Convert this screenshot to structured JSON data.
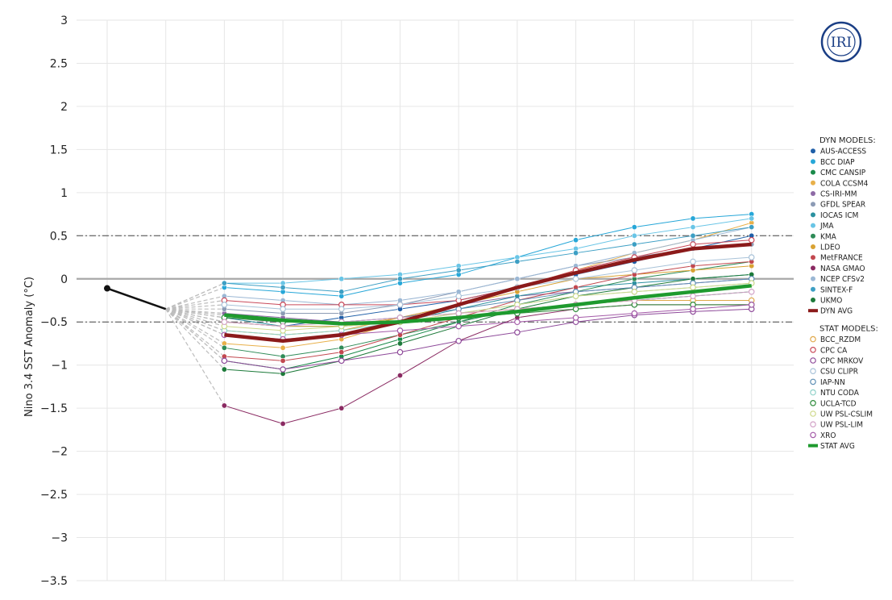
{
  "logo": {
    "text": "IRI"
  },
  "chart_data": {
    "type": "line",
    "title": "",
    "xlabel": "",
    "ylabel": "Nino 3.4 SST Anomaly (°C)",
    "ylim": [
      -3.5,
      3
    ],
    "yticks": [
      "3",
      "2.5",
      "2",
      "1.5",
      "1",
      "0.5",
      "0",
      "−0.5",
      "−1",
      "−1.5",
      "−2",
      "−2.5",
      "−3",
      "−3.5"
    ],
    "xlabels": [
      "",
      "",
      "",
      "",
      "",
      "",
      "",
      "",
      "",
      "",
      "",
      ""
    ],
    "grid": true,
    "reference_lines": [
      0.5,
      -0.5
    ],
    "legend_position": "right",
    "observed": {
      "x": [
        0,
        1
      ],
      "y": [
        -0.11,
        -0.35
      ],
      "color": "#111111"
    },
    "dyn_header": "DYN MODELS:",
    "stat_header": "STAT MODELS:",
    "series": [
      {
        "name": "AUS-ACCESS",
        "group": "dyn",
        "color": "#1f5fa8",
        "values": [
          -0.5,
          -0.55,
          -0.45,
          -0.35,
          -0.25,
          -0.1,
          0.05,
          0.2,
          0.35,
          0.5
        ]
      },
      {
        "name": "BCC DIAP",
        "group": "dyn",
        "color": "#27a7d8",
        "values": [
          -0.1,
          -0.15,
          -0.2,
          -0.05,
          0.05,
          0.25,
          0.45,
          0.6,
          0.7,
          0.75
        ]
      },
      {
        "name": "CMC CANSIP",
        "group": "dyn",
        "color": "#1a8a4a",
        "values": [
          -0.95,
          -1.05,
          -0.9,
          -0.7,
          -0.5,
          -0.35,
          -0.3,
          -0.25,
          -0.2,
          -0.15
        ]
      },
      {
        "name": "COLA CCSM4",
        "group": "dyn",
        "color": "#e8b04a",
        "values": [
          -0.75,
          -0.8,
          -0.7,
          -0.5,
          -0.3,
          -0.1,
          0.1,
          0.3,
          0.45,
          0.65
        ]
      },
      {
        "name": "CS-IRI-MM",
        "group": "dyn",
        "color": "#8e6aa6",
        "values": [
          -0.4,
          -0.45,
          -0.5,
          -0.45,
          -0.3,
          -0.2,
          -0.15,
          -0.1,
          -0.05,
          0.0
        ]
      },
      {
        "name": "GFDL SPEAR",
        "group": "dyn",
        "color": "#8c9bb5",
        "values": [
          -0.35,
          -0.4,
          -0.4,
          -0.3,
          -0.15,
          0.0,
          0.15,
          0.25,
          0.35,
          0.4
        ]
      },
      {
        "name": "IOCAS ICM",
        "group": "dyn",
        "color": "#2b91a0",
        "values": [
          -0.45,
          -0.55,
          -0.55,
          -0.5,
          -0.35,
          -0.2,
          -0.1,
          -0.05,
          0.0,
          0.05
        ]
      },
      {
        "name": "JMA",
        "group": "dyn",
        "color": "#69c5e6",
        "values": [
          -0.05,
          -0.05,
          0.0,
          0.05,
          0.15,
          0.25,
          0.35,
          0.5,
          0.6,
          0.7
        ]
      },
      {
        "name": "KMA",
        "group": "dyn",
        "color": "#2e8b57",
        "values": [
          -0.8,
          -0.9,
          -0.8,
          -0.65,
          -0.5,
          -0.3,
          -0.15,
          0.0,
          0.1,
          0.2
        ]
      },
      {
        "name": "LDEO",
        "group": "dyn",
        "color": "#d9a233",
        "values": [
          -0.6,
          -0.65,
          -0.6,
          -0.45,
          -0.3,
          -0.15,
          0.0,
          0.05,
          0.1,
          0.15
        ]
      },
      {
        "name": "MetFRANCE",
        "group": "dyn",
        "color": "#c2484f",
        "values": [
          -0.9,
          -0.95,
          -0.85,
          -0.65,
          -0.45,
          -0.25,
          -0.1,
          0.05,
          0.15,
          0.2
        ]
      },
      {
        "name": "NASA GMAO",
        "group": "dyn",
        "color": "#8a2a62",
        "values": [
          -1.47,
          -1.68,
          -1.5,
          -1.12,
          -0.72,
          -0.45,
          -0.35,
          -0.3,
          -0.3,
          -0.3
        ]
      },
      {
        "name": "NCEP CFSv2",
        "group": "dyn",
        "color": "#9bb7d4",
        "values": [
          -0.2,
          -0.25,
          -0.3,
          -0.25,
          -0.15,
          0.0,
          0.15,
          0.3,
          0.45,
          0.6
        ]
      },
      {
        "name": "SINTEX-F",
        "group": "dyn",
        "color": "#3d9fc4",
        "values": [
          -0.05,
          -0.1,
          -0.15,
          0.0,
          0.1,
          0.2,
          0.3,
          0.4,
          0.5,
          0.6
        ]
      },
      {
        "name": "UKMO",
        "group": "dyn",
        "color": "#1d7a3a",
        "values": [
          -1.05,
          -1.1,
          -0.95,
          -0.75,
          -0.55,
          -0.35,
          -0.2,
          -0.1,
          0.0,
          0.05
        ]
      },
      {
        "name": "DYN AVG",
        "group": "dyn",
        "color": "#8b1a1a",
        "avg": true,
        "values": [
          -0.65,
          -0.72,
          -0.65,
          -0.5,
          -0.3,
          -0.1,
          0.07,
          0.22,
          0.35,
          0.4
        ]
      },
      {
        "name": "BCC_RZDM",
        "group": "stat",
        "color": "#e0a84a",
        "values": [
          -0.5,
          -0.55,
          -0.55,
          -0.45,
          -0.4,
          -0.35,
          -0.3,
          -0.25,
          -0.25,
          -0.25
        ]
      },
      {
        "name": "CPC CA",
        "group": "stat",
        "color": "#c94a5a",
        "values": [
          -0.25,
          -0.3,
          -0.3,
          -0.3,
          -0.25,
          -0.1,
          0.1,
          0.25,
          0.4,
          0.45
        ]
      },
      {
        "name": "CPC MRKOV",
        "group": "stat",
        "color": "#8e4a9a",
        "values": [
          -0.95,
          -1.05,
          -0.95,
          -0.85,
          -0.72,
          -0.62,
          -0.5,
          -0.42,
          -0.38,
          -0.35
        ]
      },
      {
        "name": "CSU CLIPR",
        "group": "stat",
        "color": "#a9c3d9",
        "values": [
          -0.3,
          -0.35,
          -0.35,
          -0.3,
          -0.2,
          -0.1,
          0.0,
          0.1,
          0.2,
          0.25
        ]
      },
      {
        "name": "IAP-NN",
        "group": "stat",
        "color": "#5f8fb5",
        "values": [
          -0.45,
          -0.5,
          -0.5,
          -0.45,
          -0.35,
          -0.25,
          -0.15,
          -0.1,
          -0.05,
          0.0
        ]
      },
      {
        "name": "NTU CODA",
        "group": "stat",
        "color": "#8fd1c9",
        "values": [
          -0.6,
          -0.65,
          -0.6,
          -0.5,
          -0.4,
          -0.3,
          -0.2,
          -0.15,
          -0.1,
          -0.05
        ]
      },
      {
        "name": "UCLA-TCD",
        "group": "stat",
        "color": "#2e8b3a",
        "values": [
          -0.45,
          -0.5,
          -0.5,
          -0.5,
          -0.45,
          -0.4,
          -0.35,
          -0.3,
          -0.3,
          -0.3
        ]
      },
      {
        "name": "UW PSL-CSLIM",
        "group": "stat",
        "color": "#cfd98a",
        "values": [
          -0.55,
          -0.6,
          -0.55,
          -0.5,
          -0.4,
          -0.3,
          -0.2,
          -0.15,
          -0.1,
          -0.05
        ]
      },
      {
        "name": "UW PSL-LIM",
        "group": "stat",
        "color": "#d3a3c8",
        "values": [
          -0.5,
          -0.55,
          -0.5,
          -0.45,
          -0.4,
          -0.35,
          -0.3,
          -0.25,
          -0.2,
          -0.15
        ]
      },
      {
        "name": "XRO",
        "group": "stat",
        "color": "#a45aa8",
        "values": [
          -0.65,
          -0.7,
          -0.65,
          -0.6,
          -0.55,
          -0.5,
          -0.45,
          -0.4,
          -0.35,
          -0.3
        ]
      },
      {
        "name": "STAT AVG",
        "group": "stat",
        "color": "#1e9a2e",
        "avg": true,
        "values": [
          -0.42,
          -0.48,
          -0.52,
          -0.5,
          -0.45,
          -0.38,
          -0.3,
          -0.22,
          -0.15,
          -0.08
        ]
      }
    ]
  }
}
